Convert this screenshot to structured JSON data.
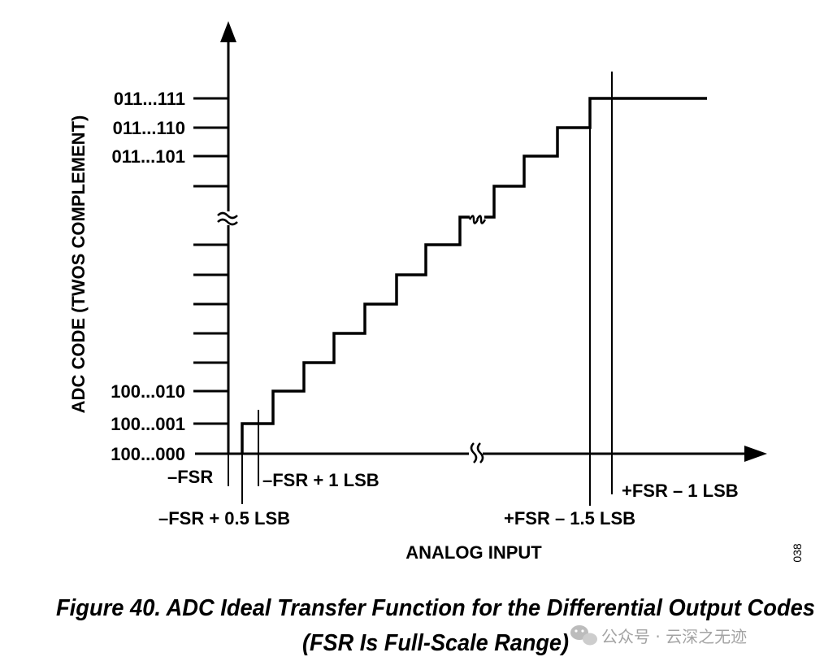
{
  "diagram": {
    "y_axis_title": "ADC CODE (TWOS COMPLEMENT)",
    "x_axis_title": "ANALOG INPUT",
    "y_tick_labels": {
      "top": [
        "011...111",
        "011...110",
        "011...101"
      ],
      "bottom": [
        "100...010",
        "100...001",
        "100...000"
      ]
    },
    "x_markers": {
      "neg_fsr": "–FSR",
      "neg_fsr_half": "–FSR + 0.5 LSB",
      "neg_fsr_one": "–FSR + 1 LSB",
      "pos_fsr_one_half": "+FSR – 1.5 LSB",
      "pos_fsr_one": "+FSR – 1 LSB"
    },
    "figure_number": "038"
  },
  "caption": {
    "line1": "Figure 40. ADC Ideal Transfer Function for the Differential Output Codes",
    "line2": "(FSR Is Full-Scale Range)"
  },
  "watermark": {
    "text": "公众号 · 云深之无迹"
  }
}
